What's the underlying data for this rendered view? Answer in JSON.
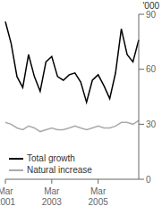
{
  "chart_data": {
    "type": "line",
    "y_label": "'000",
    "categories": [
      "Mar\n2001",
      null,
      null,
      null,
      null,
      null,
      null,
      null,
      "Mar\n2003",
      null,
      null,
      null,
      null,
      null,
      null,
      null,
      "Mar\n2005",
      null,
      null,
      null,
      null,
      null,
      null,
      null
    ],
    "series": [
      {
        "name": "Total growth",
        "color": "#000000",
        "values": [
          86,
          74,
          56,
          50,
          68,
          56,
          48,
          64,
          67,
          56,
          54,
          57,
          58,
          53,
          42,
          54,
          57,
          51,
          44,
          58,
          82,
          68,
          64,
          76
        ]
      },
      {
        "name": "Natural increase",
        "color": "#aaaaaa",
        "values": [
          31,
          30,
          28,
          27,
          29,
          28,
          26,
          27,
          28,
          27,
          27,
          28,
          29,
          28,
          27,
          28,
          29,
          28,
          28,
          29,
          31,
          31,
          30,
          32
        ]
      }
    ],
    "ylim": [
      0,
      90
    ],
    "yticks": [
      0,
      30,
      60,
      90
    ],
    "grid": false,
    "legend": "lower left"
  }
}
